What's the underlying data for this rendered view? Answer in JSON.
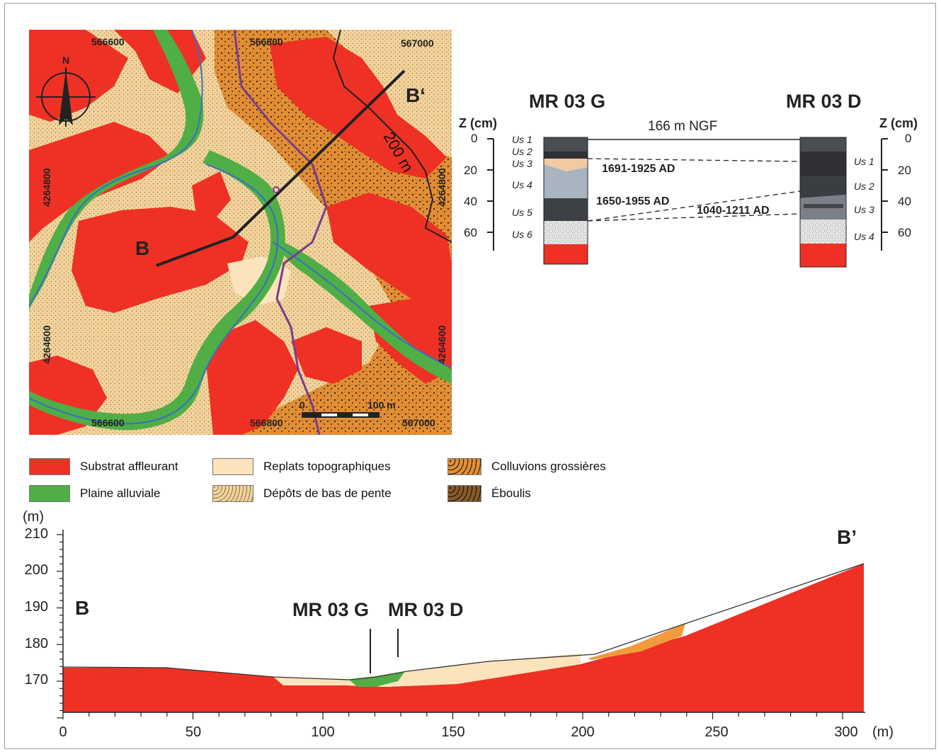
{
  "map": {
    "coords_top": [
      "566600",
      "566800",
      "567000"
    ],
    "coords_bottom": [
      "566600",
      "566800",
      "567000"
    ],
    "coords_left": [
      "4264800",
      "4264600"
    ],
    "coords_right": [
      "4264800",
      "4264600"
    ],
    "north_label": "N",
    "section_start": "B",
    "section_end": "B‘",
    "contour_label": "200 m",
    "scale_start": "0",
    "scale_end": "100 m"
  },
  "profiles": {
    "left_title": "MR 03 G",
    "right_title": "MR 03 D",
    "left_axis_label": "Z (cm)",
    "right_axis_label": "Z (cm)",
    "datum_label": "166 m NGF",
    "left_ticks": [
      "0",
      "20",
      "40",
      "60"
    ],
    "right_ticks": [
      "0",
      "20",
      "40",
      "60"
    ],
    "left_units": [
      "Us 1",
      "Us 2",
      "Us 3",
      "Us 4",
      "Us 5",
      "Us 6"
    ],
    "right_units": [
      "Us 1",
      "Us 2",
      "Us 3",
      "Us 4"
    ],
    "dates": [
      "1691-1925 AD",
      "1650-1955 AD",
      "1040-1211 AD"
    ]
  },
  "legend": [
    {
      "label": "Substrat affleurant",
      "color": "#ee3124"
    },
    {
      "label": "Plaine alluviale",
      "color": "#4fae46"
    },
    {
      "label": "Replats topographiques",
      "color": "#fbe3bb"
    },
    {
      "label": "Dépôts de bas de pente",
      "color": "#f3d39a"
    },
    {
      "label": "Colluvions grossières",
      "color": "#e38e34"
    },
    {
      "label": "Éboulis",
      "color": "#8a5a2c"
    }
  ],
  "section": {
    "y_unit": "(m)",
    "x_unit": "(m)",
    "y_ticks": [
      "210",
      "200",
      "190",
      "180",
      "170"
    ],
    "x_ticks": [
      "0",
      "50",
      "100",
      "150",
      "200",
      "250",
      "300"
    ],
    "label_b": "B",
    "label_b_prime": "B’",
    "label_g": "MR 03 G",
    "label_d": "MR 03 D"
  }
}
